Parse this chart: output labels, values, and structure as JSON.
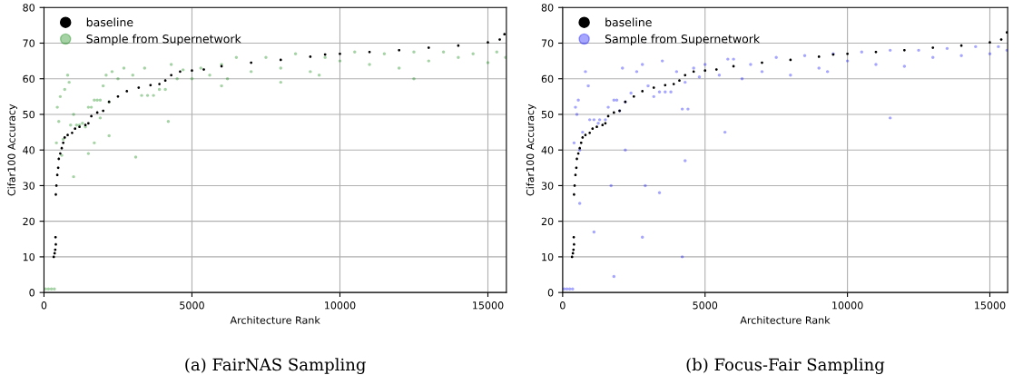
{
  "chart_data": [
    {
      "type": "scatter",
      "title": "(a) FairNAS Sampling",
      "xlabel": "Architecture Rank",
      "ylabel": "Cifar100 Accuracy",
      "xlim": [
        0,
        15625
      ],
      "ylim": [
        0,
        80
      ],
      "xticks": [
        0,
        5000,
        10000,
        15000
      ],
      "yticks": [
        0,
        10,
        20,
        30,
        40,
        50,
        60,
        70,
        80
      ],
      "grid": true,
      "legend": "top left",
      "marker": "circle",
      "series": [
        {
          "name": "baseline",
          "color": "#000000",
          "x": [
            330,
            360,
            380,
            400,
            390,
            400,
            420,
            450,
            480,
            500,
            550,
            600,
            650,
            700,
            800,
            950,
            1050,
            1200,
            1400,
            1500,
            1600,
            1800,
            2000,
            2200,
            2500,
            2800,
            3200,
            3600,
            3900,
            4100,
            4300,
            4600,
            5000,
            5400,
            6000,
            7000,
            8000,
            9000,
            9500,
            10000,
            11000,
            12000,
            13000,
            14000,
            15000,
            15400,
            15560
          ],
          "values": [
            10,
            11,
            12,
            13.5,
            15.5,
            27.5,
            30,
            33,
            35,
            37.5,
            39,
            40.5,
            42,
            43.5,
            44.2,
            44.8,
            46,
            46.5,
            47,
            47.5,
            49.5,
            50.5,
            51,
            53.5,
            55,
            56.5,
            57.5,
            58.2,
            58.5,
            59.5,
            61,
            62,
            62.3,
            62.6,
            63.5,
            64.5,
            65.3,
            66.2,
            66.8,
            67,
            67.5,
            68,
            68.7,
            69.3,
            70.2,
            71,
            72.5
          ]
        },
        {
          "name": "Sample from Supernetwork",
          "color": "#008000",
          "x": [
            50,
            150,
            250,
            350,
            420,
            450,
            500,
            550,
            600,
            650,
            700,
            800,
            850,
            900,
            1000,
            1100,
            1200,
            1300,
            1400,
            1500,
            1600,
            1700,
            1800,
            1900,
            2000,
            2100,
            2200,
            2300,
            2500,
            2700,
            3000,
            3300,
            3500,
            3700,
            3400,
            3900,
            4100,
            4300,
            4500,
            4700,
            5000,
            5300,
            5600,
            6000,
            6200,
            6500,
            7000,
            7500,
            8000,
            8500,
            9000,
            9300,
            9500,
            10000,
            10500,
            11000,
            11500,
            12000,
            12500,
            13000,
            13500,
            14000,
            14500,
            15000,
            15300,
            15600,
            1500,
            1700,
            2200,
            1900,
            3100,
            4200,
            1000,
            6000,
            8000,
            12500
          ],
          "values": [
            1,
            1,
            1,
            1,
            42,
            52,
            48,
            55,
            38.5,
            43,
            57,
            61,
            59,
            47,
            50,
            47,
            47,
            47.5,
            46.5,
            52,
            52,
            54,
            54,
            54,
            58,
            61,
            53.5,
            62,
            60,
            63,
            61,
            55.3,
            55.3,
            55.3,
            63,
            57,
            57,
            64,
            60,
            62.5,
            60,
            63,
            61,
            64,
            60,
            66,
            62,
            66,
            63,
            67,
            62,
            61,
            66,
            65,
            67.5,
            64,
            67,
            63,
            67.5,
            65,
            67.5,
            66,
            67,
            64.5,
            67.5,
            66,
            39,
            42,
            44,
            49,
            38,
            48,
            32.5,
            58,
            59,
            60
          ]
        }
      ]
    },
    {
      "type": "scatter",
      "title": "(b) Focus-Fair Sampling",
      "xlabel": "Architecture Rank",
      "ylabel": "Cifar100 Accuracy",
      "xlim": [
        0,
        15625
      ],
      "ylim": [
        0,
        80
      ],
      "xticks": [
        0,
        5000,
        10000,
        15000
      ],
      "yticks": [
        0,
        10,
        20,
        30,
        40,
        50,
        60,
        70,
        80
      ],
      "grid": true,
      "legend": "top left",
      "marker": "circle",
      "series": [
        {
          "name": "baseline",
          "color": "#000000",
          "x": [
            330,
            360,
            380,
            400,
            390,
            400,
            420,
            450,
            480,
            500,
            550,
            600,
            650,
            700,
            800,
            950,
            1050,
            1200,
            1400,
            1500,
            1600,
            1800,
            2000,
            2200,
            2500,
            2800,
            3200,
            3600,
            3900,
            4100,
            4300,
            4600,
            5000,
            5400,
            6000,
            7000,
            8000,
            9000,
            9500,
            10000,
            11000,
            12000,
            13000,
            14000,
            15000,
            15400,
            15600
          ],
          "values": [
            10,
            11,
            12,
            13.5,
            15.5,
            27.5,
            30,
            33,
            35,
            37.5,
            39,
            40.5,
            42,
            43.5,
            44.2,
            44.8,
            46,
            46.5,
            47,
            47.5,
            49.5,
            50.5,
            51,
            53.5,
            55,
            56.5,
            57.5,
            58.2,
            58.5,
            59.5,
            61,
            62,
            62.3,
            62.6,
            63.5,
            64.5,
            65.3,
            66.2,
            66.8,
            67,
            67.5,
            68,
            68.7,
            69.3,
            70.2,
            71,
            73
          ]
        },
        {
          "name": "Sample from Supernetwork",
          "color": "#0000ff",
          "x": [
            50,
            150,
            250,
            350,
            400,
            450,
            500,
            550,
            600,
            700,
            800,
            900,
            950,
            1100,
            1300,
            1500,
            1250,
            1600,
            1800,
            1900,
            2000,
            2100,
            2200,
            2400,
            2600,
            2800,
            3000,
            3200,
            3400,
            3600,
            3800,
            3500,
            4000,
            4200,
            4400,
            4300,
            4600,
            4800,
            5000,
            5500,
            5800,
            6000,
            6300,
            6600,
            7000,
            7500,
            8000,
            8500,
            9000,
            9300,
            9500,
            10000,
            10500,
            11000,
            11500,
            12000,
            12500,
            13000,
            13500,
            14000,
            14500,
            15000,
            15300,
            15600,
            600,
            1100,
            1700,
            2800,
            1800,
            2900,
            3400,
            4200,
            4300,
            5700,
            11500,
            2200
          ],
          "values": [
            1,
            1,
            1,
            1,
            42,
            52,
            50,
            54,
            40,
            45,
            62,
            58,
            48.5,
            48.5,
            48.5,
            48.5,
            47.5,
            52,
            54,
            54,
            51,
            63,
            53.5,
            56,
            62,
            64,
            58,
            55,
            56.3,
            56.3,
            56.3,
            65,
            62,
            51.5,
            51.5,
            59,
            63,
            60.5,
            64,
            61,
            65.5,
            65.5,
            60,
            64,
            62,
            66,
            61,
            66.5,
            63,
            62,
            67,
            65,
            67.5,
            64,
            68,
            63.5,
            68,
            66,
            68.5,
            66.5,
            69,
            67,
            69,
            68,
            25,
            17,
            30,
            15.5,
            4.5,
            30,
            28,
            10,
            37,
            45,
            49,
            40
          ]
        }
      ]
    }
  ]
}
